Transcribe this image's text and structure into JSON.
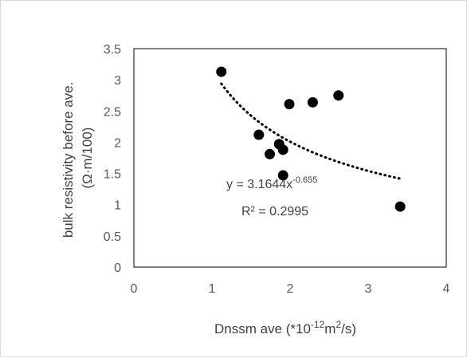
{
  "chart_data": {
    "type": "scatter",
    "xlabel": {
      "main": "Dnssm ave  (*10",
      "exp1": "-12",
      "mid": "m",
      "exp2": "2",
      "end": "/s)"
    },
    "ylabel": {
      "line1": "bulk resistivity before ave.",
      "line2": "(Ω·m/100)"
    },
    "xlim": [
      0,
      4
    ],
    "ylim": [
      0,
      3.5
    ],
    "xticks": [
      "0",
      "1",
      "2",
      "3",
      "4"
    ],
    "yticks": [
      "0",
      "0.5",
      "1",
      "1.5",
      "2",
      "2.5",
      "3",
      "3.5"
    ],
    "points": [
      {
        "x": 1.12,
        "y": 3.13
      },
      {
        "x": 1.6,
        "y": 2.12
      },
      {
        "x": 1.74,
        "y": 1.81
      },
      {
        "x": 1.86,
        "y": 1.97
      },
      {
        "x": 1.91,
        "y": 1.88
      },
      {
        "x": 1.91,
        "y": 1.47
      },
      {
        "x": 1.99,
        "y": 2.61
      },
      {
        "x": 2.29,
        "y": 2.64
      },
      {
        "x": 2.62,
        "y": 2.75
      },
      {
        "x": 3.41,
        "y": 0.97
      }
    ],
    "trendline": {
      "type": "power",
      "a": 3.1644,
      "b": -0.655,
      "x_range": [
        1.12,
        3.41
      ],
      "equation_main": "y = 3.1644x",
      "equation_exp": "-0.655",
      "r2_text": "R² = 0.2995"
    },
    "grid": false,
    "legend": "none",
    "marker_color": "#000000",
    "trendline_color": "#000000"
  }
}
